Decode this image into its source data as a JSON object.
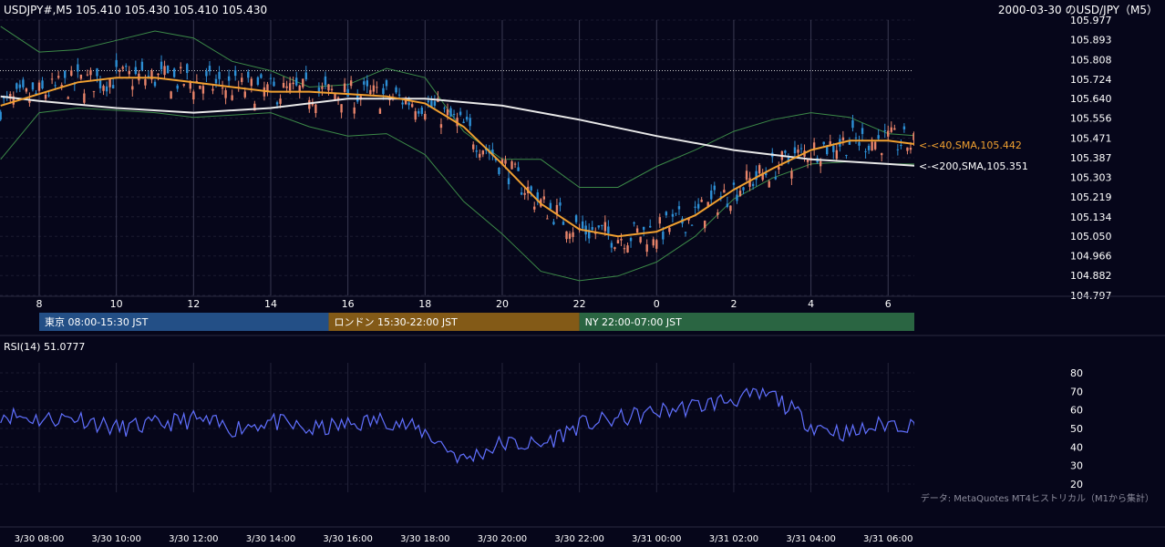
{
  "header": {
    "symbol_quote": "USDJPY#,M5 105.410 105.430 105.410 105.430",
    "title": "2000-03-30 のUSD/JPY（M5）"
  },
  "colors": {
    "background": "#06061a",
    "bull_candle": "#2d8fd5",
    "bear_candle": "#e8846a",
    "sma40": "#f0a030",
    "sma200": "#e8e8e8",
    "bollinger": "#3c8a48",
    "rsi": "#6070ff",
    "tokyo": "#234f86",
    "london": "#835a17",
    "ny": "#2a6542"
  },
  "chart_data": [
    {
      "type": "candlestick",
      "title": "2000-03-30 のUSD/JPY（M5）",
      "ylim": [
        104.797,
        105.977
      ],
      "y_ticks": [
        "105.977",
        "105.893",
        "105.808",
        "105.724",
        "105.640",
        "105.556",
        "105.471",
        "105.387",
        "105.303",
        "105.219",
        "105.134",
        "105.050",
        "104.966",
        "104.882",
        "104.797"
      ],
      "x_ticks": [
        "8",
        "10",
        "12",
        "14",
        "16",
        "18",
        "20",
        "22",
        "0",
        "2",
        "4",
        "6"
      ],
      "last": {
        "open": 105.41,
        "high": 105.43,
        "low": 105.41,
        "close": 105.43
      },
      "reference_level": 105.76,
      "series": [
        {
          "name": "SMA 40",
          "label": "<-<40,SMA,105.442",
          "x": [
            "07:00",
            "08:00",
            "09:00",
            "10:00",
            "11:00",
            "12:00",
            "13:00",
            "14:00",
            "15:00",
            "16:00",
            "17:00",
            "18:00",
            "19:00",
            "20:00",
            "21:00",
            "22:00",
            "23:00",
            "00:00",
            "01:00",
            "02:00",
            "03:00",
            "04:00",
            "05:00",
            "06:00",
            "06:50"
          ],
          "values": [
            105.61,
            105.66,
            105.71,
            105.73,
            105.73,
            105.71,
            105.69,
            105.67,
            105.67,
            105.66,
            105.65,
            105.62,
            105.52,
            105.36,
            105.19,
            105.08,
            105.05,
            105.07,
            105.14,
            105.25,
            105.34,
            105.42,
            105.46,
            105.46,
            105.442
          ]
        },
        {
          "name": "SMA 200",
          "label": "<-<200,SMA,105.351",
          "x": [
            "07:00",
            "08:00",
            "10:00",
            "12:00",
            "14:00",
            "16:00",
            "18:00",
            "20:00",
            "22:00",
            "00:00",
            "02:00",
            "04:00",
            "06:00",
            "06:50"
          ],
          "values": [
            105.65,
            105.63,
            105.6,
            105.58,
            105.6,
            105.64,
            105.64,
            105.61,
            105.55,
            105.48,
            105.42,
            105.38,
            105.36,
            105.351
          ]
        },
        {
          "name": "Bollinger upper",
          "x": [
            "07:00",
            "08:00",
            "09:00",
            "10:00",
            "11:00",
            "12:00",
            "13:00",
            "14:00",
            "15:00",
            "16:00",
            "17:00",
            "18:00",
            "19:00",
            "20:00",
            "21:00",
            "22:00",
            "23:00",
            "00:00",
            "01:00",
            "02:00",
            "03:00",
            "04:00",
            "05:00",
            "06:00",
            "06:50"
          ],
          "values": [
            105.95,
            105.84,
            105.85,
            105.89,
            105.93,
            105.9,
            105.8,
            105.76,
            105.69,
            105.7,
            105.77,
            105.73,
            105.5,
            105.38,
            105.38,
            105.26,
            105.26,
            105.35,
            105.42,
            105.5,
            105.55,
            105.58,
            105.56,
            105.49,
            105.48
          ]
        },
        {
          "name": "Bollinger lower",
          "x": [
            "07:00",
            "08:00",
            "09:00",
            "10:00",
            "11:00",
            "12:00",
            "13:00",
            "14:00",
            "15:00",
            "16:00",
            "17:00",
            "18:00",
            "19:00",
            "20:00",
            "21:00",
            "22:00",
            "23:00",
            "00:00",
            "01:00",
            "02:00",
            "03:00",
            "04:00",
            "05:00",
            "06:00",
            "06:50"
          ],
          "values": [
            105.38,
            105.58,
            105.6,
            105.59,
            105.58,
            105.56,
            105.57,
            105.58,
            105.52,
            105.48,
            105.49,
            105.4,
            105.2,
            105.06,
            104.9,
            104.86,
            104.88,
            104.94,
            105.05,
            105.21,
            105.3,
            105.36,
            105.37,
            105.36,
            105.36
          ]
        }
      ]
    },
    {
      "type": "line",
      "title": "RSI(14) 51.0777",
      "ylim": [
        20,
        80
      ],
      "y_ticks": [
        "80",
        "70",
        "60",
        "50",
        "40",
        "30",
        "20"
      ],
      "x_ticks": [
        "3/30 08:00",
        "3/30 10:00",
        "3/30 12:00",
        "3/30 14:00",
        "3/30 16:00",
        "3/30 18:00",
        "3/30 20:00",
        "3/30 22:00",
        "3/31 00:00",
        "3/31 02:00",
        "3/31 04:00",
        "3/31 06:00"
      ],
      "series": [
        {
          "name": "RSI(14)",
          "x": [
            "07:00",
            "08:00",
            "09:00",
            "10:00",
            "11:00",
            "12:00",
            "13:00",
            "14:00",
            "15:00",
            "16:00",
            "17:00",
            "18:00",
            "19:00",
            "20:00",
            "21:00",
            "22:00",
            "23:00",
            "00:00",
            "01:00",
            "02:00",
            "03:00",
            "04:00",
            "05:00",
            "06:00",
            "06:50"
          ],
          "values": [
            58,
            55,
            56,
            50,
            52,
            55,
            50,
            54,
            49,
            52,
            55,
            48,
            33,
            42,
            41,
            52,
            55,
            59,
            62,
            66,
            68,
            52,
            47,
            53,
            51.0777
          ]
        }
      ]
    }
  ],
  "sessions": [
    {
      "label": "東京 08:00-15:30 JST"
    },
    {
      "label": "ロンドン 15:30-22:00 JST"
    },
    {
      "label": "NY 22:00-07:00 JST"
    }
  ],
  "footer_note": "データ: MetaQuotes MT4ヒストリカル（M1から集計）"
}
